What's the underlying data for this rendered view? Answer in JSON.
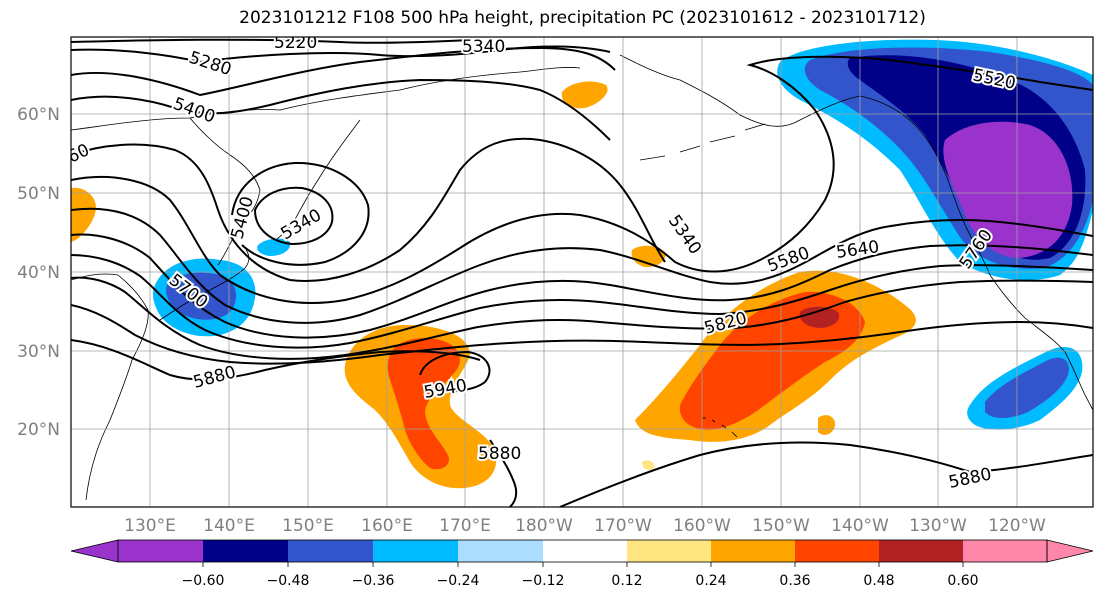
{
  "title": "2023101212 F108 500 hPa height, precipitation PC (2023101612 - 2023101712)",
  "map": {
    "lat_labels": [
      "60°N",
      "50°N",
      "40°N",
      "30°N",
      "20°N"
    ],
    "lon_labels": [
      "130°E",
      "140°E",
      "150°E",
      "160°E",
      "170°E",
      "180°W",
      "170°W",
      "160°W",
      "150°W",
      "140°W",
      "130°W",
      "120°W"
    ],
    "contour_labels": [
      "5220",
      "5340",
      "5280",
      "5400",
      "60",
      "5400",
      "5340",
      "5700",
      "5340",
      "5520",
      "5580",
      "5640",
      "5760",
      "5820",
      "5880",
      "5940",
      "5880",
      "5880"
    ],
    "colors": {
      "contour": "#000000",
      "grid": "#a0a0a0",
      "coast": "#000000"
    }
  },
  "colorbar": {
    "colors": [
      "#9933cc",
      "#000088",
      "#3355cc",
      "#00bbff",
      "#aaddff",
      "#ffffff",
      "#ffe680",
      "#ffa500",
      "#ff4400",
      "#b22222",
      "#ff88aa"
    ],
    "ticks": [
      "−0.60",
      "−0.48",
      "−0.36",
      "−0.24",
      "−0.12",
      "0.12",
      "0.24",
      "0.36",
      "0.48",
      "0.60"
    ]
  }
}
